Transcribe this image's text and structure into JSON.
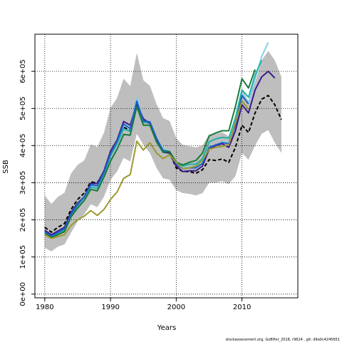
{
  "chart_data": {
    "type": "line",
    "xlabel": "Years",
    "ylabel": "SSB",
    "xlim": [
      1978.5,
      2018.5
    ],
    "ylim": [
      -10000,
      700000
    ],
    "x_ticks": [
      1980,
      1990,
      2000,
      2010
    ],
    "y_ticks": [
      0,
      100000,
      200000,
      300000,
      400000,
      500000,
      600000
    ],
    "y_tick_labels": [
      "0e+00",
      "1e+05",
      "2e+05",
      "3e+05",
      "4e+05",
      "5e+05",
      "6e+05"
    ],
    "grid": true,
    "grid_style": "dotted",
    "footnote": "stockassessment.org, GoBHer_2018, r9624 , git: d9a0c4245651",
    "confidence_band": {
      "color": "#bebebe",
      "x": [
        1980,
        1981,
        1982,
        1983,
        1984,
        1985,
        1986,
        1987,
        1988,
        1989,
        1990,
        1991,
        1992,
        1993,
        1994,
        1995,
        1996,
        1997,
        1998,
        1999,
        2000,
        2001,
        2002,
        2003,
        2004,
        2005,
        2006,
        2007,
        2008,
        2009,
        2010,
        2011,
        2012,
        2013,
        2014,
        2015,
        2016
      ],
      "lower": [
        125000,
        115000,
        128000,
        134000,
        165000,
        196000,
        215000,
        242000,
        234000,
        262000,
        308000,
        330000,
        367000,
        357000,
        432000,
        402000,
        380000,
        340000,
        312000,
        308000,
        280000,
        272000,
        270000,
        266000,
        272000,
        300000,
        300000,
        304000,
        296000,
        318000,
        380000,
        362000,
        400000,
        432000,
        442000,
        408000,
        380000
      ],
      "upper": [
        266000,
        243000,
        262000,
        273000,
        325000,
        348000,
        360000,
        403000,
        396000,
        435000,
        502000,
        528000,
        580000,
        560000,
        650000,
        576000,
        561000,
        512000,
        474000,
        466000,
        420000,
        402000,
        398000,
        395000,
        400000,
        430000,
        432000,
        436000,
        425000,
        474000,
        550000,
        520000,
        570000,
        630000,
        655000,
        630000,
        585000
      ]
    },
    "series": [
      {
        "color": "#000000",
        "dashed": true,
        "x": [
          1980,
          1981,
          1982,
          1983,
          1984,
          1985,
          1986,
          1987,
          1988,
          1989,
          1990,
          1991,
          1992,
          1993,
          1994,
          1995,
          1996,
          1997,
          1998,
          1999,
          2000,
          2001,
          2002,
          2003,
          2004,
          2005,
          2006,
          2007,
          2008,
          2009,
          2010,
          2011,
          2012,
          2013,
          2014,
          2015,
          2016
        ],
        "values": [
          180000,
          167000,
          180000,
          190000,
          228000,
          255000,
          272000,
          302000,
          300000,
          330000,
          380000,
          405000,
          450000,
          440000,
          508000,
          470000,
          458000,
          415000,
          385000,
          380000,
          340000,
          330000,
          330000,
          325000,
          335000,
          362000,
          360000,
          364000,
          355000,
          395000,
          455000,
          435000,
          488000,
          525000,
          535000,
          510000,
          470000
        ]
      },
      {
        "color": "#87ceeb",
        "x": [
          1980,
          1981,
          1982,
          1983,
          1984,
          1985,
          1986,
          1987,
          1988,
          1989,
          1990,
          1991,
          1992,
          1993,
          1994,
          1995,
          1996,
          1997,
          1998,
          1999,
          2000,
          2001,
          2002,
          2003,
          2004,
          2005,
          2006,
          2007,
          2008,
          2009,
          2010,
          2011,
          2012,
          2013,
          2014
        ],
        "values": [
          168000,
          155000,
          165000,
          175000,
          215000,
          240000,
          262000,
          292000,
          290000,
          325000,
          378000,
          412000,
          455000,
          445000,
          528000,
          468000,
          465000,
          420000,
          390000,
          385000,
          355000,
          340000,
          342000,
          342000,
          355000,
          395000,
          400000,
          410000,
          408000,
          460000,
          540000,
          515000,
          580000,
          640000,
          678000
        ]
      },
      {
        "color": "#20b2aa",
        "x": [
          1980,
          1981,
          1982,
          1983,
          1984,
          1985,
          1986,
          1987,
          1988,
          1989,
          1990,
          1991,
          1992,
          1993,
          1994,
          1995,
          1996,
          1997,
          1998,
          1999,
          2000,
          2001,
          2002,
          2003,
          2004,
          2005,
          2006,
          2007,
          2008,
          2009,
          2010,
          2011,
          2012,
          2013
        ],
        "values": [
          165000,
          153000,
          162000,
          172000,
          212000,
          238000,
          260000,
          288000,
          285000,
          320000,
          372000,
          405000,
          445000,
          438000,
          518000,
          462000,
          462000,
          418000,
          388000,
          384000,
          355000,
          345000,
          350000,
          350000,
          365000,
          410000,
          418000,
          422000,
          420000,
          475000,
          550000,
          530000,
          590000,
          630000
        ]
      },
      {
        "color": "#3b1c8c",
        "x": [
          1980,
          1981,
          1982,
          1983,
          1984,
          1985,
          1986,
          1987,
          1988,
          1989,
          1990,
          1991,
          1992,
          1993,
          1994,
          1995,
          1996,
          1997,
          1998,
          1999,
          2000,
          2001,
          2002,
          2003,
          2004,
          2005,
          2006,
          2007,
          2008,
          2009,
          2010,
          2011,
          2012,
          2013,
          2014,
          2015
        ],
        "values": [
          172000,
          160000,
          170000,
          180000,
          220000,
          245000,
          262000,
          298000,
          298000,
          332000,
          385000,
          415000,
          465000,
          455000,
          512000,
          472000,
          460000,
          415000,
          382000,
          380000,
          345000,
          330000,
          332000,
          332000,
          345000,
          390000,
          400000,
          405000,
          395000,
          440000,
          510000,
          488000,
          550000,
          585000,
          600000,
          582000
        ]
      },
      {
        "color": "#1e5fc8",
        "x": [
          1980,
          1981,
          1982,
          1983,
          1984,
          1985,
          1986,
          1987,
          1988,
          1989,
          1990,
          1991,
          1992,
          1993,
          1994,
          1995,
          1996,
          1997,
          1998,
          1999,
          2000,
          2001,
          2002,
          2003,
          2004,
          2005,
          2006,
          2007,
          2008,
          2009,
          2010,
          2011
        ],
        "values": [
          168000,
          156000,
          166000,
          176000,
          216000,
          242000,
          262000,
          294000,
          292000,
          328000,
          378000,
          412000,
          458000,
          446000,
          520000,
          466000,
          464000,
          420000,
          386000,
          384000,
          350000,
          338000,
          340000,
          340000,
          352000,
          395000,
          402000,
          408000,
          405000,
          455000,
          535000,
          512000
        ]
      },
      {
        "color": "#1a7a3a",
        "x": [
          1980,
          1981,
          1982,
          1983,
          1984,
          1985,
          1986,
          1987,
          1988,
          1989,
          1990,
          1991,
          1992,
          1993,
          1994,
          1995,
          1996,
          1997,
          1998,
          1999,
          2000,
          2001,
          2002,
          2003,
          2004,
          2005,
          2006,
          2007,
          2008,
          2009,
          2010,
          2011,
          2012
        ],
        "values": [
          163000,
          152000,
          160000,
          168000,
          208000,
          232000,
          252000,
          282000,
          278000,
          315000,
          358000,
          390000,
          430000,
          428000,
          505000,
          455000,
          455000,
          410000,
          382000,
          384000,
          355000,
          348000,
          355000,
          360000,
          380000,
          426000,
          434000,
          440000,
          440000,
          505000,
          580000,
          555000,
          605000
        ]
      },
      {
        "color": "#9a9a2e",
        "x": [
          1980,
          1981,
          1982,
          1983,
          1984,
          1985,
          1986,
          1987,
          1988,
          1989,
          1990,
          1991,
          1992,
          1993,
          1994,
          1995,
          1996,
          1997,
          1998,
          1999,
          2000,
          2001,
          2002,
          2003,
          2004,
          2005,
          2006,
          2007,
          2008,
          2009,
          2010,
          2011
        ],
        "values": [
          160000,
          150000,
          155000,
          160000,
          185000,
          200000,
          210000,
          225000,
          212000,
          228000,
          255000,
          275000,
          312000,
          322000,
          412000,
          388000,
          408000,
          380000,
          365000,
          375000,
          355000,
          338000,
          340000,
          345000,
          360000,
          390000,
          395000,
          398000,
          402000,
          462000,
          520000,
          498000
        ]
      }
    ]
  }
}
